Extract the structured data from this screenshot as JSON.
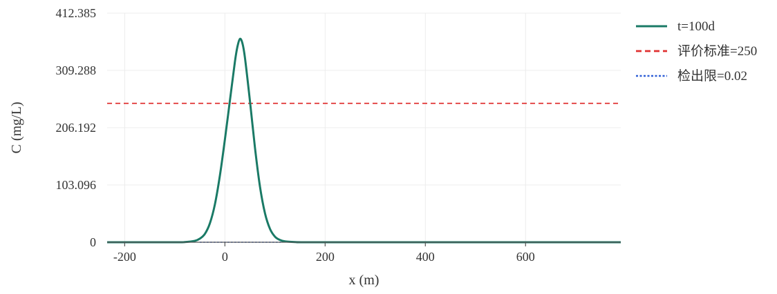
{
  "chart_data": {
    "type": "line",
    "xlabel": "x (m)",
    "ylabel": "C (mg/L)",
    "xlim": [
      -235,
      790
    ],
    "ylim": [
      0,
      412.385
    ],
    "x_ticks": [
      {
        "value": -200,
        "label": "-200"
      },
      {
        "value": 0,
        "label": "0"
      },
      {
        "value": 200,
        "label": "200"
      },
      {
        "value": 400,
        "label": "400"
      },
      {
        "value": 600,
        "label": "600"
      }
    ],
    "y_ticks": [
      {
        "value": 0,
        "label": "0"
      },
      {
        "value": 103.096,
        "label": "103.096"
      },
      {
        "value": 206.192,
        "label": "206.192"
      },
      {
        "value": 309.288,
        "label": "309.288"
      },
      {
        "value": 412.385,
        "label": "412.385"
      }
    ],
    "grid": true,
    "legend_position": "right",
    "series": [
      {
        "name": "t=100d",
        "style": "solid",
        "color": "#1a7a66",
        "x": [
          -235,
          -100,
          -80,
          -60,
          -50,
          -40,
          -30,
          -20,
          -10,
          0,
          10,
          20,
          25,
          30,
          35,
          40,
          50,
          60,
          70,
          80,
          90,
          100,
          110,
          120,
          140,
          160,
          200,
          790
        ],
        "y": [
          0,
          0,
          0.3,
          2.5,
          6.5,
          15,
          34,
          68,
          120,
          185,
          255,
          325,
          352,
          366,
          358,
          332,
          254,
          170,
          100,
          52,
          24,
          10,
          4,
          1.5,
          0.3,
          0,
          0,
          0
        ]
      },
      {
        "name": "评价标准=250",
        "style": "dashed",
        "color": "#e03030",
        "x": [
          -235,
          790
        ],
        "y": [
          250,
          250
        ]
      },
      {
        "name": "检出限=0.02",
        "style": "dotted",
        "color": "#2f5fd6",
        "x": [
          -50,
          115
        ],
        "y": [
          0.02,
          0.02
        ]
      }
    ]
  }
}
